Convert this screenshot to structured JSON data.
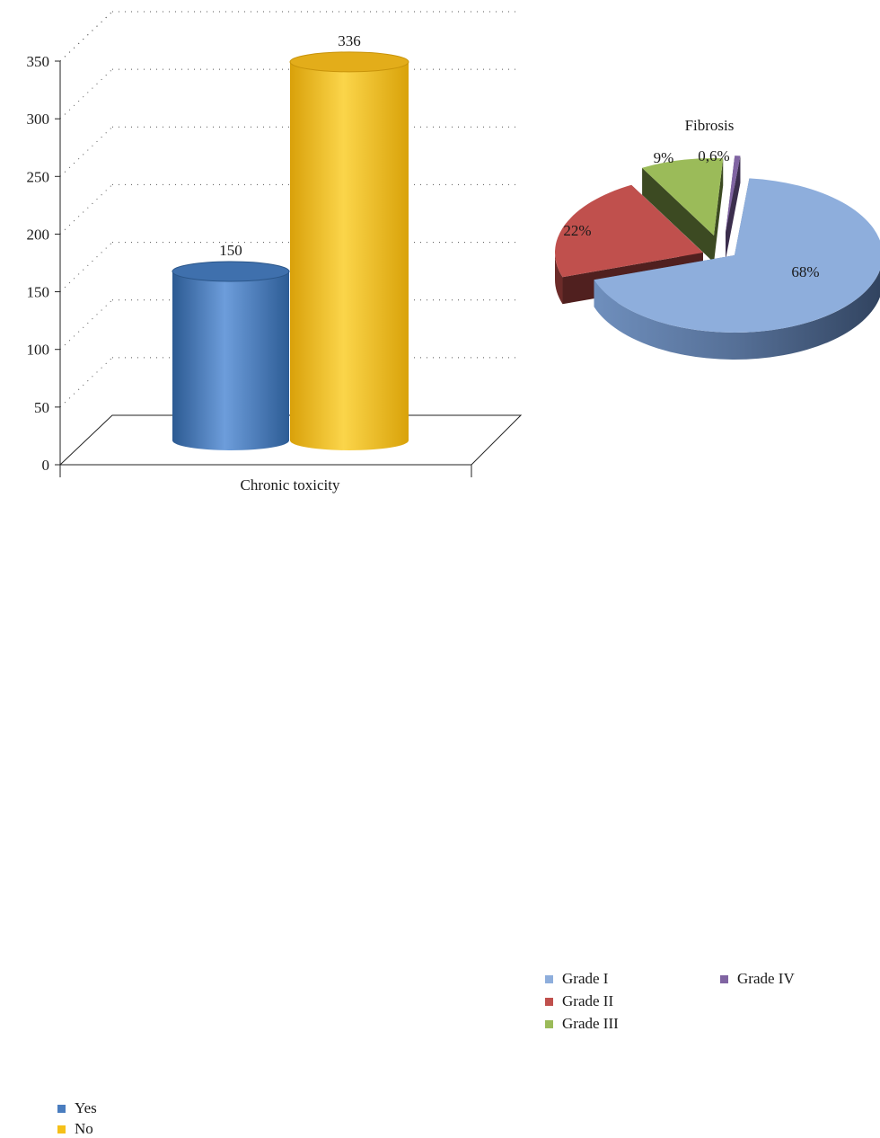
{
  "chart_data": [
    {
      "type": "bar",
      "style": "3d-cylinder",
      "xlabel": "Chronic toxicity",
      "ylabel": "",
      "ylim": [
        0,
        350
      ],
      "yticks": [
        0,
        50,
        100,
        150,
        200,
        250,
        300,
        350
      ],
      "categories": [
        "Chronic toxicity"
      ],
      "series": [
        {
          "name": "Yes",
          "values": [
            150
          ],
          "color": "#4a7dbf"
        },
        {
          "name": "No",
          "values": [
            336
          ],
          "color": "#f5c018"
        }
      ],
      "grid": "dotted",
      "legend_position": "bottom-left"
    },
    {
      "type": "pie",
      "style": "3d-exploded",
      "title": "Fibrosis",
      "slices": [
        {
          "name": "Grade I",
          "label": "68%",
          "value": 68,
          "color": "#8eaedc"
        },
        {
          "name": "Grade II",
          "label": "22%",
          "value": 22,
          "color": "#c0504d"
        },
        {
          "name": "Grade III",
          "label": "9%",
          "value": 9,
          "color": "#9bbb59"
        },
        {
          "name": "Grade IV",
          "label": "0,6%",
          "value": 0.6,
          "color": "#8064a2"
        }
      ],
      "legend_position": "bottom"
    }
  ]
}
